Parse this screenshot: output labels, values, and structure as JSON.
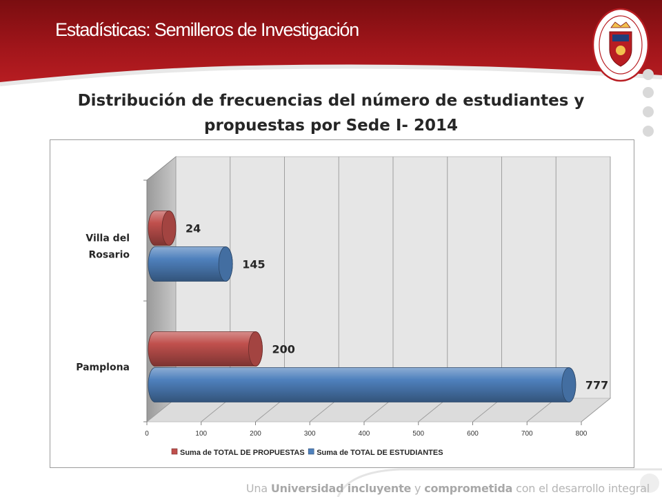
{
  "slide": {
    "title": "Estadísticas: Semilleros de Investigación",
    "crest_text": "UNIVERSIDAD DE PAMPLONA · COLOMBIA"
  },
  "footer": {
    "part1": "Una ",
    "part2": "Universidad incluyente",
    "part3": " y ",
    "part4": "comprometida",
    "part5": " con el desarrollo integral"
  },
  "chart_data": {
    "type": "bar",
    "orientation": "horizontal",
    "style": "3d-cylinder",
    "title": "Distribución de frecuencias del número de estudiantes y propuestas por  Sede I- 2014",
    "categories": [
      "Villa del Rosario",
      "Pamplona"
    ],
    "series": [
      {
        "name": "Suma de TOTAL DE PROPUESTAS",
        "color": "#c0504d",
        "values": [
          24,
          200
        ]
      },
      {
        "name": "Suma de TOTAL DE ESTUDIANTES",
        "color": "#4f81bd",
        "values": [
          145,
          777
        ]
      }
    ],
    "xlim": [
      0,
      800
    ],
    "xticks": [
      0,
      100,
      200,
      300,
      400,
      500,
      600,
      700,
      800
    ],
    "grid": true,
    "legend_position": "bottom",
    "data_labels": true
  }
}
